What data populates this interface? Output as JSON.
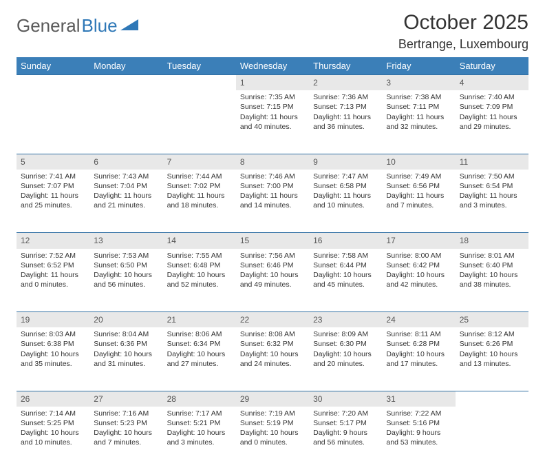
{
  "brand": {
    "part1": "General",
    "part2": "Blue"
  },
  "title": "October 2025",
  "location": "Bertrange, Luxembourg",
  "colors": {
    "header_bg": "#3b7fb8",
    "header_text": "#ffffff",
    "daynum_bg": "#e8e8e8",
    "border": "#2f6fa3",
    "text": "#333333"
  },
  "weekdays": [
    "Sunday",
    "Monday",
    "Tuesday",
    "Wednesday",
    "Thursday",
    "Friday",
    "Saturday"
  ],
  "weeks": [
    {
      "nums": [
        "",
        "",
        "",
        "1",
        "2",
        "3",
        "4"
      ],
      "cells": [
        {
          "sunrise": "",
          "sunset": "",
          "daylight": ""
        },
        {
          "sunrise": "",
          "sunset": "",
          "daylight": ""
        },
        {
          "sunrise": "",
          "sunset": "",
          "daylight": ""
        },
        {
          "sunrise": "Sunrise: 7:35 AM",
          "sunset": "Sunset: 7:15 PM",
          "daylight": "Daylight: 11 hours and 40 minutes."
        },
        {
          "sunrise": "Sunrise: 7:36 AM",
          "sunset": "Sunset: 7:13 PM",
          "daylight": "Daylight: 11 hours and 36 minutes."
        },
        {
          "sunrise": "Sunrise: 7:38 AM",
          "sunset": "Sunset: 7:11 PM",
          "daylight": "Daylight: 11 hours and 32 minutes."
        },
        {
          "sunrise": "Sunrise: 7:40 AM",
          "sunset": "Sunset: 7:09 PM",
          "daylight": "Daylight: 11 hours and 29 minutes."
        }
      ]
    },
    {
      "nums": [
        "5",
        "6",
        "7",
        "8",
        "9",
        "10",
        "11"
      ],
      "cells": [
        {
          "sunrise": "Sunrise: 7:41 AM",
          "sunset": "Sunset: 7:07 PM",
          "daylight": "Daylight: 11 hours and 25 minutes."
        },
        {
          "sunrise": "Sunrise: 7:43 AM",
          "sunset": "Sunset: 7:04 PM",
          "daylight": "Daylight: 11 hours and 21 minutes."
        },
        {
          "sunrise": "Sunrise: 7:44 AM",
          "sunset": "Sunset: 7:02 PM",
          "daylight": "Daylight: 11 hours and 18 minutes."
        },
        {
          "sunrise": "Sunrise: 7:46 AM",
          "sunset": "Sunset: 7:00 PM",
          "daylight": "Daylight: 11 hours and 14 minutes."
        },
        {
          "sunrise": "Sunrise: 7:47 AM",
          "sunset": "Sunset: 6:58 PM",
          "daylight": "Daylight: 11 hours and 10 minutes."
        },
        {
          "sunrise": "Sunrise: 7:49 AM",
          "sunset": "Sunset: 6:56 PM",
          "daylight": "Daylight: 11 hours and 7 minutes."
        },
        {
          "sunrise": "Sunrise: 7:50 AM",
          "sunset": "Sunset: 6:54 PM",
          "daylight": "Daylight: 11 hours and 3 minutes."
        }
      ]
    },
    {
      "nums": [
        "12",
        "13",
        "14",
        "15",
        "16",
        "17",
        "18"
      ],
      "cells": [
        {
          "sunrise": "Sunrise: 7:52 AM",
          "sunset": "Sunset: 6:52 PM",
          "daylight": "Daylight: 11 hours and 0 minutes."
        },
        {
          "sunrise": "Sunrise: 7:53 AM",
          "sunset": "Sunset: 6:50 PM",
          "daylight": "Daylight: 10 hours and 56 minutes."
        },
        {
          "sunrise": "Sunrise: 7:55 AM",
          "sunset": "Sunset: 6:48 PM",
          "daylight": "Daylight: 10 hours and 52 minutes."
        },
        {
          "sunrise": "Sunrise: 7:56 AM",
          "sunset": "Sunset: 6:46 PM",
          "daylight": "Daylight: 10 hours and 49 minutes."
        },
        {
          "sunrise": "Sunrise: 7:58 AM",
          "sunset": "Sunset: 6:44 PM",
          "daylight": "Daylight: 10 hours and 45 minutes."
        },
        {
          "sunrise": "Sunrise: 8:00 AM",
          "sunset": "Sunset: 6:42 PM",
          "daylight": "Daylight: 10 hours and 42 minutes."
        },
        {
          "sunrise": "Sunrise: 8:01 AM",
          "sunset": "Sunset: 6:40 PM",
          "daylight": "Daylight: 10 hours and 38 minutes."
        }
      ]
    },
    {
      "nums": [
        "19",
        "20",
        "21",
        "22",
        "23",
        "24",
        "25"
      ],
      "cells": [
        {
          "sunrise": "Sunrise: 8:03 AM",
          "sunset": "Sunset: 6:38 PM",
          "daylight": "Daylight: 10 hours and 35 minutes."
        },
        {
          "sunrise": "Sunrise: 8:04 AM",
          "sunset": "Sunset: 6:36 PM",
          "daylight": "Daylight: 10 hours and 31 minutes."
        },
        {
          "sunrise": "Sunrise: 8:06 AM",
          "sunset": "Sunset: 6:34 PM",
          "daylight": "Daylight: 10 hours and 27 minutes."
        },
        {
          "sunrise": "Sunrise: 8:08 AM",
          "sunset": "Sunset: 6:32 PM",
          "daylight": "Daylight: 10 hours and 24 minutes."
        },
        {
          "sunrise": "Sunrise: 8:09 AM",
          "sunset": "Sunset: 6:30 PM",
          "daylight": "Daylight: 10 hours and 20 minutes."
        },
        {
          "sunrise": "Sunrise: 8:11 AM",
          "sunset": "Sunset: 6:28 PM",
          "daylight": "Daylight: 10 hours and 17 minutes."
        },
        {
          "sunrise": "Sunrise: 8:12 AM",
          "sunset": "Sunset: 6:26 PM",
          "daylight": "Daylight: 10 hours and 13 minutes."
        }
      ]
    },
    {
      "nums": [
        "26",
        "27",
        "28",
        "29",
        "30",
        "31",
        ""
      ],
      "cells": [
        {
          "sunrise": "Sunrise: 7:14 AM",
          "sunset": "Sunset: 5:25 PM",
          "daylight": "Daylight: 10 hours and 10 minutes."
        },
        {
          "sunrise": "Sunrise: 7:16 AM",
          "sunset": "Sunset: 5:23 PM",
          "daylight": "Daylight: 10 hours and 7 minutes."
        },
        {
          "sunrise": "Sunrise: 7:17 AM",
          "sunset": "Sunset: 5:21 PM",
          "daylight": "Daylight: 10 hours and 3 minutes."
        },
        {
          "sunrise": "Sunrise: 7:19 AM",
          "sunset": "Sunset: 5:19 PM",
          "daylight": "Daylight: 10 hours and 0 minutes."
        },
        {
          "sunrise": "Sunrise: 7:20 AM",
          "sunset": "Sunset: 5:17 PM",
          "daylight": "Daylight: 9 hours and 56 minutes."
        },
        {
          "sunrise": "Sunrise: 7:22 AM",
          "sunset": "Sunset: 5:16 PM",
          "daylight": "Daylight: 9 hours and 53 minutes."
        },
        {
          "sunrise": "",
          "sunset": "",
          "daylight": ""
        }
      ]
    }
  ]
}
